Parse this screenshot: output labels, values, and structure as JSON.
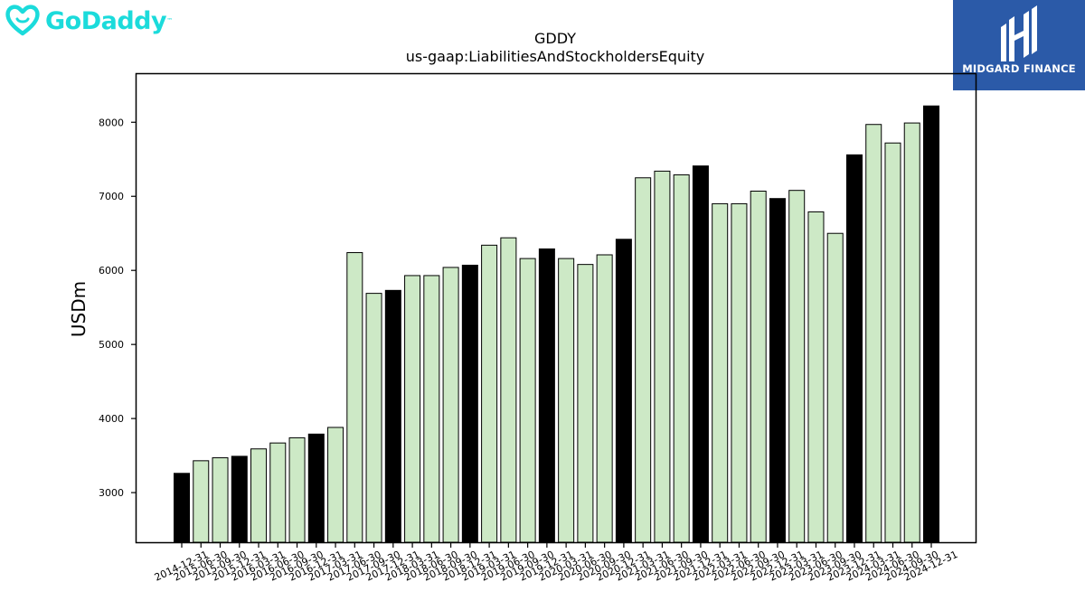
{
  "logos": {
    "left": {
      "name": "GoDaddy",
      "color": "#1bdbdb"
    },
    "right": {
      "name": "MIDGARD FINANCE",
      "background": "#2b5aa8"
    }
  },
  "chart_data": {
    "type": "bar",
    "title": "GDDY",
    "subtitle": "us-gaap:LiabilitiesAndStockholdersEquity",
    "xlabel": "",
    "ylabel": "USDm",
    "ylim": [
      2330,
      8650
    ],
    "yticks": [
      3000,
      4000,
      5000,
      6000,
      7000,
      8000
    ],
    "grid": false,
    "legend": "none",
    "colors": {
      "annual": "#000000",
      "quarter": "#cde9c6",
      "edge": "#000000"
    },
    "categories": [
      "2014-12-31",
      "2015-06-30",
      "2015-09-30",
      "2015-12-31",
      "2016-03-31",
      "2016-06-30",
      "2016-09-30",
      "2016-12-31",
      "2017-03-31",
      "2017-06-30",
      "2017-09-30",
      "2017-12-31",
      "2018-03-31",
      "2018-06-30",
      "2018-09-30",
      "2018-12-31",
      "2019-03-31",
      "2019-06-30",
      "2019-09-30",
      "2019-12-31",
      "2020-03-31",
      "2020-06-30",
      "2020-09-30",
      "2020-12-31",
      "2021-03-31",
      "2021-06-30",
      "2021-09-30",
      "2021-12-31",
      "2022-03-31",
      "2022-06-30",
      "2022-09-30",
      "2022-12-31",
      "2023-03-31",
      "2023-06-30",
      "2023-09-30",
      "2023-12-31",
      "2024-03-31",
      "2024-06-30",
      "2024-09-30",
      "2024-12-31"
    ],
    "values": [
      3260,
      3430,
      3470,
      3490,
      3590,
      3670,
      3740,
      3790,
      3880,
      6240,
      5690,
      5730,
      5930,
      5930,
      6040,
      6070,
      6340,
      6440,
      6160,
      6290,
      6160,
      6080,
      6210,
      6420,
      7250,
      7340,
      7290,
      7410,
      6900,
      6900,
      7070,
      6970,
      7080,
      6790,
      6500,
      7560,
      7970,
      7720,
      7990,
      8220
    ],
    "highlight": [
      true,
      false,
      false,
      true,
      false,
      false,
      false,
      true,
      false,
      false,
      false,
      true,
      false,
      false,
      false,
      true,
      false,
      false,
      false,
      true,
      false,
      false,
      false,
      true,
      false,
      false,
      false,
      true,
      false,
      false,
      false,
      true,
      false,
      false,
      false,
      true,
      false,
      false,
      false,
      true
    ]
  }
}
